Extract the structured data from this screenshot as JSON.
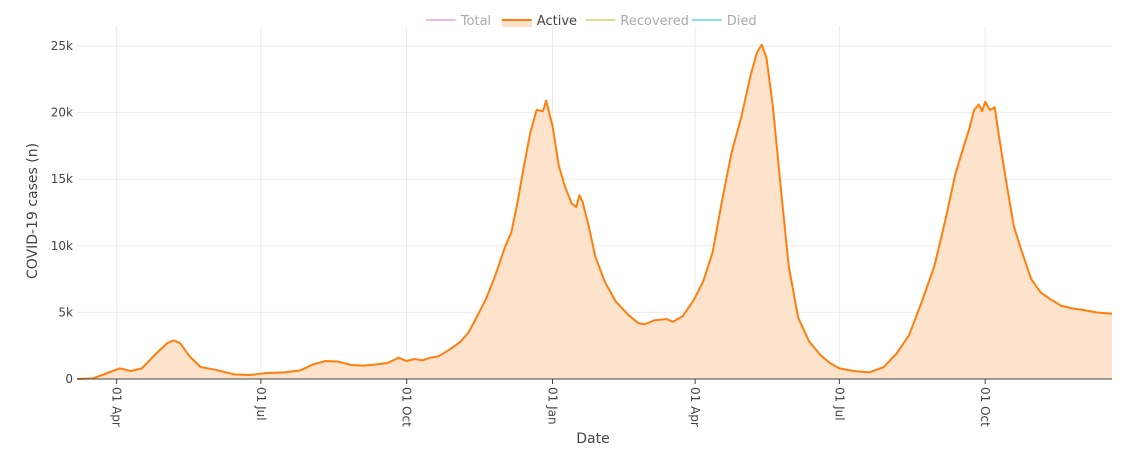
{
  "chart_data": {
    "type": "area",
    "title": "",
    "xlabel": "Date",
    "ylabel": "COVID-19 cases (n)",
    "x_range": [
      "2020-03-07",
      "2021-12-20"
    ],
    "ylim": [
      0,
      26500
    ],
    "y_ticks": [
      {
        "value": 0,
        "label": "0"
      },
      {
        "value": 5000,
        "label": "5k"
      },
      {
        "value": 10000,
        "label": "10k"
      },
      {
        "value": 15000,
        "label": "15k"
      },
      {
        "value": 20000,
        "label": "20k"
      },
      {
        "value": 25000,
        "label": "25k"
      }
    ],
    "x_ticks": [
      {
        "date": "2020-04-01",
        "label": "01 Apr"
      },
      {
        "date": "2020-07-01",
        "label": "01 Jul"
      },
      {
        "date": "2020-10-01",
        "label": "01 Oct"
      },
      {
        "date": "2021-01-01",
        "label": "01 Jan"
      },
      {
        "date": "2021-04-01",
        "label": "01 Apr"
      },
      {
        "date": "2021-07-01",
        "label": "01 Jul"
      },
      {
        "date": "2021-10-01",
        "label": "01 Oct"
      }
    ],
    "grid": true,
    "legend_position": "top-center",
    "legend": [
      {
        "name": "Total",
        "color": "#e377c2",
        "visible": false
      },
      {
        "name": "Active",
        "color": "#ff7f0e",
        "visible": true
      },
      {
        "name": "Recovered",
        "color": "#bcbd22",
        "visible": false
      },
      {
        "name": "Died",
        "color": "#17becf",
        "visible": false
      }
    ],
    "series": [
      {
        "name": "Active",
        "color": "#ff7f0e",
        "fill": "#fde3cc",
        "points": [
          [
            "2020-03-07",
            0
          ],
          [
            "2020-03-17",
            50
          ],
          [
            "2020-03-25",
            400
          ],
          [
            "2020-04-03",
            800
          ],
          [
            "2020-04-10",
            600
          ],
          [
            "2020-04-17",
            800
          ],
          [
            "2020-04-25",
            1800
          ],
          [
            "2020-05-03",
            2700
          ],
          [
            "2020-05-07",
            2900
          ],
          [
            "2020-05-11",
            2700
          ],
          [
            "2020-05-17",
            1700
          ],
          [
            "2020-05-24",
            900
          ],
          [
            "2020-06-02",
            700
          ],
          [
            "2020-06-14",
            350
          ],
          [
            "2020-06-24",
            300
          ],
          [
            "2020-07-05",
            450
          ],
          [
            "2020-07-16",
            500
          ],
          [
            "2020-07-26",
            650
          ],
          [
            "2020-08-03",
            1100
          ],
          [
            "2020-08-11",
            1350
          ],
          [
            "2020-08-19",
            1300
          ],
          [
            "2020-08-27",
            1050
          ],
          [
            "2020-09-04",
            1000
          ],
          [
            "2020-09-12",
            1100
          ],
          [
            "2020-09-19",
            1200
          ],
          [
            "2020-09-26",
            1600
          ],
          [
            "2020-10-01",
            1350
          ],
          [
            "2020-10-06",
            1500
          ],
          [
            "2020-10-11",
            1400
          ],
          [
            "2020-10-16",
            1600
          ],
          [
            "2020-10-21",
            1700
          ],
          [
            "2020-10-28",
            2200
          ],
          [
            "2020-11-04",
            2800
          ],
          [
            "2020-11-09",
            3500
          ],
          [
            "2020-11-14",
            4600
          ],
          [
            "2020-11-20",
            6000
          ],
          [
            "2020-11-26",
            7800
          ],
          [
            "2020-12-02",
            9900
          ],
          [
            "2020-12-06",
            11000
          ],
          [
            "2020-12-10",
            13300
          ],
          [
            "2020-12-14",
            16000
          ],
          [
            "2020-12-18",
            18500
          ],
          [
            "2020-12-22",
            20200
          ],
          [
            "2020-12-26",
            20100
          ],
          [
            "2020-12-28",
            20900
          ],
          [
            "2021-01-01",
            19000
          ],
          [
            "2021-01-05",
            16000
          ],
          [
            "2021-01-09",
            14400
          ],
          [
            "2021-01-13",
            13200
          ],
          [
            "2021-01-16",
            12900
          ],
          [
            "2021-01-18",
            13800
          ],
          [
            "2021-01-20",
            13300
          ],
          [
            "2021-01-24",
            11400
          ],
          [
            "2021-01-28",
            9200
          ],
          [
            "2021-02-03",
            7300
          ],
          [
            "2021-02-10",
            5800
          ],
          [
            "2021-02-18",
            4800
          ],
          [
            "2021-02-24",
            4200
          ],
          [
            "2021-02-28",
            4100
          ],
          [
            "2021-03-06",
            4400
          ],
          [
            "2021-03-14",
            4500
          ],
          [
            "2021-03-18",
            4300
          ],
          [
            "2021-03-24",
            4700
          ],
          [
            "2021-03-31",
            5900
          ],
          [
            "2021-04-06",
            7300
          ],
          [
            "2021-04-12",
            9500
          ],
          [
            "2021-04-18",
            13400
          ],
          [
            "2021-04-24",
            17000
          ],
          [
            "2021-04-30",
            19600
          ],
          [
            "2021-05-06",
            22800
          ],
          [
            "2021-05-10",
            24500
          ],
          [
            "2021-05-13",
            25100
          ],
          [
            "2021-05-16",
            24100
          ],
          [
            "2021-05-20",
            20500
          ],
          [
            "2021-05-25",
            14400
          ],
          [
            "2021-05-30",
            8500
          ],
          [
            "2021-06-05",
            4600
          ],
          [
            "2021-06-12",
            2800
          ],
          [
            "2021-06-19",
            1800
          ],
          [
            "2021-06-25",
            1200
          ],
          [
            "2021-07-01",
            800
          ],
          [
            "2021-07-10",
            600
          ],
          [
            "2021-07-20",
            500
          ],
          [
            "2021-07-29",
            900
          ],
          [
            "2021-08-06",
            1900
          ],
          [
            "2021-08-14",
            3300
          ],
          [
            "2021-08-22",
            5800
          ],
          [
            "2021-08-30",
            8500
          ],
          [
            "2021-09-06",
            12000
          ],
          [
            "2021-09-12",
            15300
          ],
          [
            "2021-09-17",
            17300
          ],
          [
            "2021-09-21",
            18800
          ],
          [
            "2021-09-24",
            20200
          ],
          [
            "2021-09-27",
            20600
          ],
          [
            "2021-09-29",
            20100
          ],
          [
            "2021-10-01",
            20800
          ],
          [
            "2021-10-04",
            20200
          ],
          [
            "2021-10-07",
            20400
          ],
          [
            "2021-10-10",
            18000
          ],
          [
            "2021-10-14",
            15000
          ],
          [
            "2021-10-19",
            11500
          ],
          [
            "2021-10-24",
            9600
          ],
          [
            "2021-10-30",
            7500
          ],
          [
            "2021-11-05",
            6500
          ],
          [
            "2021-11-11",
            6000
          ],
          [
            "2021-11-18",
            5500
          ],
          [
            "2021-11-25",
            5300
          ],
          [
            "2021-12-01",
            5200
          ],
          [
            "2021-12-10",
            5000
          ],
          [
            "2021-12-20",
            4900
          ]
        ]
      }
    ]
  }
}
